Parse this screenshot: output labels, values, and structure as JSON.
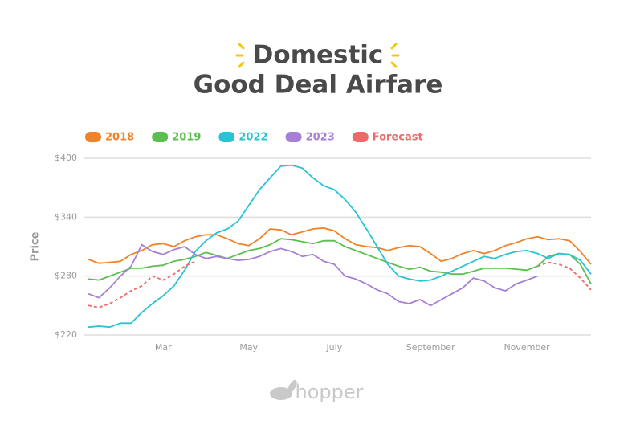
{
  "chart_data": {
    "type": "line",
    "title": [
      "Domestic",
      "Good Deal Airfare"
    ],
    "ylabel": "Price",
    "source": "hopper",
    "categories": [
      null,
      null,
      null,
      null,
      null,
      null,
      null,
      "Mar",
      null,
      null,
      null,
      null,
      null,
      null,
      null,
      "May",
      null,
      null,
      null,
      null,
      null,
      null,
      null,
      "July",
      null,
      null,
      null,
      null,
      null,
      null,
      null,
      null,
      "September",
      null,
      null,
      null,
      null,
      null,
      null,
      null,
      null,
      "November",
      null,
      null,
      null,
      null,
      null,
      null
    ],
    "ylim": [
      220,
      400
    ],
    "yticks": [
      {
        "value": 220,
        "label": "$220"
      },
      {
        "value": 280,
        "label": "$280"
      },
      {
        "value": 340,
        "label": "$340"
      },
      {
        "value": 400,
        "label": "$400"
      }
    ],
    "grid": true,
    "legend": "top-left",
    "series": [
      {
        "name": "2018",
        "color": "#f0822a",
        "values": [
          297,
          293,
          294,
          295,
          302,
          306,
          312,
          313,
          310,
          316,
          320,
          322,
          322,
          318,
          313,
          311,
          318,
          328,
          327,
          322,
          325,
          328,
          329,
          326,
          318,
          312,
          310,
          309,
          306,
          309,
          311,
          310,
          303,
          295,
          298,
          303,
          306,
          303,
          306,
          311,
          314,
          318,
          320,
          317,
          318,
          316,
          305,
          292
        ]
      },
      {
        "name": "2019",
        "color": "#5bbf4f",
        "values": [
          277,
          276,
          280,
          284,
          288,
          288,
          290,
          291,
          295,
          297,
          300,
          304,
          301,
          298,
          302,
          306,
          308,
          312,
          318,
          317,
          315,
          313,
          316,
          316,
          310,
          306,
          302,
          298,
          294,
          290,
          287,
          289,
          285,
          284,
          282,
          282,
          285,
          288,
          288,
          288,
          287,
          286,
          290,
          300,
          303,
          302,
          292,
          272
        ]
      },
      {
        "name": "2022",
        "color": "#29c3d6",
        "values": [
          228,
          229,
          228,
          232,
          232,
          243,
          252,
          260,
          270,
          286,
          305,
          316,
          324,
          328,
          336,
          352,
          368,
          380,
          392,
          393,
          390,
          380,
          372,
          368,
          358,
          345,
          328,
          310,
          292,
          280,
          277,
          275,
          276,
          280,
          285,
          290,
          295,
          300,
          298,
          302,
          305,
          306,
          303,
          298,
          303,
          302,
          296,
          282
        ]
      },
      {
        "name": "2023",
        "color": "#a77fd6",
        "values": [
          262,
          258,
          268,
          280,
          290,
          312,
          305,
          302,
          307,
          310,
          302,
          298,
          300,
          298,
          296,
          297,
          300,
          305,
          308,
          305,
          300,
          302,
          295,
          292,
          280,
          277,
          272,
          266,
          262,
          254,
          252,
          256,
          250,
          256,
          262,
          268,
          278,
          275,
          268,
          265,
          272,
          276,
          280,
          null,
          null,
          null,
          null,
          null
        ]
      },
      {
        "name": "Forecast",
        "color": "#ee6a6a",
        "style": "dashed",
        "values": [
          250,
          248,
          252,
          258,
          265,
          270,
          280,
          276,
          282,
          290,
          295,
          null,
          null,
          null,
          null,
          null,
          null,
          null,
          null,
          null,
          null,
          null,
          null,
          null,
          null,
          null,
          null,
          null,
          null,
          null,
          null,
          null,
          null,
          null,
          null,
          null,
          null,
          null,
          null,
          null,
          null,
          null,
          290,
          294,
          292,
          288,
          278,
          266
        ]
      }
    ]
  }
}
